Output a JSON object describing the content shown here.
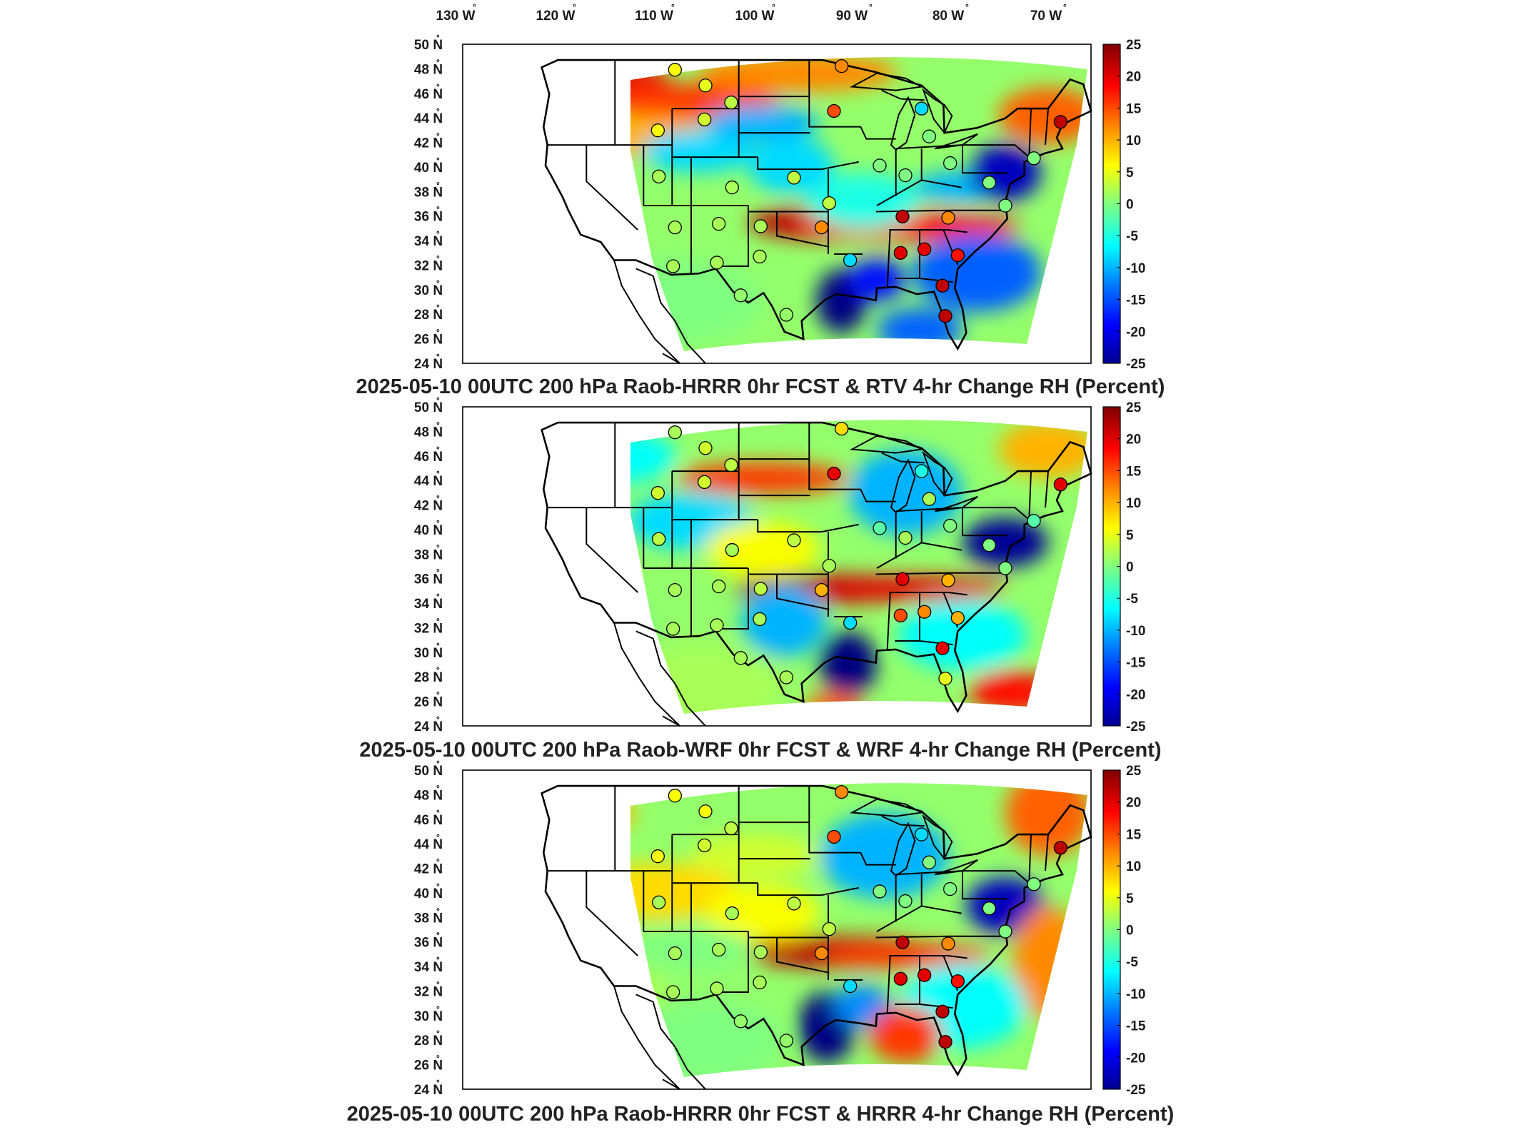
{
  "lon_labels": [
    "130",
    "120",
    "110",
    "100",
    "90",
    "80",
    "70"
  ],
  "lon_suffix": "W",
  "lat_labels": [
    "50",
    "48",
    "46",
    "44",
    "42",
    "40",
    "38",
    "36",
    "34",
    "32",
    "30",
    "28",
    "26",
    "24"
  ],
  "lat_suffix": "N",
  "colorbar": {
    "ticks": [
      "25",
      "20",
      "15",
      "10",
      "5",
      "0",
      "-5",
      "-10",
      "-15",
      "-20",
      "-25"
    ],
    "range": [
      -25,
      25
    ],
    "colormap": "jet",
    "colors": [
      "#00008f",
      "#0000ff",
      "#0080ff",
      "#00ffff",
      "#80ff80",
      "#ffff00",
      "#ff8000",
      "#ff0000",
      "#800000"
    ]
  },
  "panels": [
    {
      "title": "2025-05-10 00UTC 200 hPa Raob-HRRR 0hr FCST & RTV 4-hr Change RH (Percent)",
      "stations": [
        {
          "lon": -110.7,
          "lat": 48.2,
          "value": 6
        },
        {
          "lon": -107.5,
          "lat": 46.9,
          "value": 5
        },
        {
          "lon": -104.8,
          "lat": 45.5,
          "value": 3
        },
        {
          "lon": -93.2,
          "lat": 48.5,
          "value": 12
        },
        {
          "lon": -94.0,
          "lat": 44.8,
          "value": 15
        },
        {
          "lon": -112.5,
          "lat": 43.2,
          "value": 6
        },
        {
          "lon": -107.6,
          "lat": 44.1,
          "value": 4
        },
        {
          "lon": -84.8,
          "lat": 45.0,
          "value": -8
        },
        {
          "lon": -84.0,
          "lat": 42.7,
          "value": 0
        },
        {
          "lon": -89.2,
          "lat": 40.3,
          "value": 0
        },
        {
          "lon": -81.8,
          "lat": 40.5,
          "value": 0
        },
        {
          "lon": -86.5,
          "lat": 39.5,
          "value": 0
        },
        {
          "lon": -112.4,
          "lat": 39.4,
          "value": 2
        },
        {
          "lon": -104.7,
          "lat": 38.5,
          "value": 2
        },
        {
          "lon": -98.2,
          "lat": 39.3,
          "value": 3
        },
        {
          "lon": -94.5,
          "lat": 37.2,
          "value": 3
        },
        {
          "lon": -86.8,
          "lat": 36.1,
          "value": 22
        },
        {
          "lon": -82.0,
          "lat": 36.0,
          "value": 12
        },
        {
          "lon": -77.7,
          "lat": 38.9,
          "value": 0
        },
        {
          "lon": -95.3,
          "lat": 35.2,
          "value": 12
        },
        {
          "lon": -110.7,
          "lat": 35.2,
          "value": 2
        },
        {
          "lon": -106.1,
          "lat": 35.5,
          "value": 2
        },
        {
          "lon": -101.7,
          "lat": 35.3,
          "value": 2
        },
        {
          "lon": -92.3,
          "lat": 32.5,
          "value": -8
        },
        {
          "lon": -87.0,
          "lat": 33.1,
          "value": 20
        },
        {
          "lon": -84.5,
          "lat": 33.4,
          "value": 20
        },
        {
          "lon": -81.0,
          "lat": 32.9,
          "value": 18
        },
        {
          "lon": -106.3,
          "lat": 32.3,
          "value": 2
        },
        {
          "lon": -101.8,
          "lat": 32.8,
          "value": 2
        },
        {
          "lon": -110.9,
          "lat": 32.0,
          "value": 2
        },
        {
          "lon": -103.8,
          "lat": 29.6,
          "value": 1
        },
        {
          "lon": -99.0,
          "lat": 28.0,
          "value": 1
        },
        {
          "lon": -82.6,
          "lat": 30.4,
          "value": 22
        },
        {
          "lon": -82.3,
          "lat": 27.9,
          "value": 22
        },
        {
          "lon": -70.2,
          "lat": 43.9,
          "value": 22
        },
        {
          "lon": -73.0,
          "lat": 40.9,
          "value": 0
        },
        {
          "lon": -76.0,
          "lat": 37.0,
          "value": 0
        }
      ]
    },
    {
      "title": "2025-05-10 00UTC 200 hPa Raob-WRF 0hr FCST & WRF 4-hr Change RH (Percent)",
      "stations": [
        {
          "lon": -110.7,
          "lat": 48.2,
          "value": 2
        },
        {
          "lon": -107.5,
          "lat": 46.9,
          "value": 4
        },
        {
          "lon": -104.8,
          "lat": 45.5,
          "value": 3
        },
        {
          "lon": -93.2,
          "lat": 48.5,
          "value": 8
        },
        {
          "lon": -94.0,
          "lat": 44.8,
          "value": 20
        },
        {
          "lon": -112.5,
          "lat": 43.2,
          "value": 4
        },
        {
          "lon": -107.6,
          "lat": 44.1,
          "value": 4
        },
        {
          "lon": -84.8,
          "lat": 45.0,
          "value": -5
        },
        {
          "lon": -84.0,
          "lat": 42.7,
          "value": 2
        },
        {
          "lon": -89.2,
          "lat": 40.3,
          "value": -2
        },
        {
          "lon": -81.8,
          "lat": 40.5,
          "value": 0
        },
        {
          "lon": -86.5,
          "lat": 39.5,
          "value": 2
        },
        {
          "lon": -112.4,
          "lat": 39.4,
          "value": 3
        },
        {
          "lon": -104.7,
          "lat": 38.5,
          "value": 2
        },
        {
          "lon": -98.2,
          "lat": 39.3,
          "value": 3
        },
        {
          "lon": -94.5,
          "lat": 37.2,
          "value": 2
        },
        {
          "lon": -86.8,
          "lat": 36.1,
          "value": 20
        },
        {
          "lon": -82.0,
          "lat": 36.0,
          "value": 10
        },
        {
          "lon": -77.7,
          "lat": 38.9,
          "value": 0
        },
        {
          "lon": -95.3,
          "lat": 35.2,
          "value": 10
        },
        {
          "lon": -110.7,
          "lat": 35.2,
          "value": 2
        },
        {
          "lon": -106.1,
          "lat": 35.5,
          "value": 2
        },
        {
          "lon": -101.7,
          "lat": 35.3,
          "value": 3
        },
        {
          "lon": -92.3,
          "lat": 32.5,
          "value": -8
        },
        {
          "lon": -87.0,
          "lat": 33.1,
          "value": 15
        },
        {
          "lon": -84.5,
          "lat": 33.4,
          "value": 12
        },
        {
          "lon": -81.0,
          "lat": 32.9,
          "value": 10
        },
        {
          "lon": -106.3,
          "lat": 32.3,
          "value": 2
        },
        {
          "lon": -101.8,
          "lat": 32.8,
          "value": 2
        },
        {
          "lon": -110.9,
          "lat": 32.0,
          "value": 2
        },
        {
          "lon": -103.8,
          "lat": 29.6,
          "value": 2
        },
        {
          "lon": -99.0,
          "lat": 28.0,
          "value": 2
        },
        {
          "lon": -82.6,
          "lat": 30.4,
          "value": 20
        },
        {
          "lon": -82.3,
          "lat": 27.9,
          "value": 5
        },
        {
          "lon": -70.2,
          "lat": 43.9,
          "value": 20
        },
        {
          "lon": -73.0,
          "lat": 40.9,
          "value": -2
        },
        {
          "lon": -76.0,
          "lat": 37.0,
          "value": 0
        }
      ]
    },
    {
      "title": "2025-05-10 00UTC 200 hPa Raob-HRRR 0hr FCST & HRRR 4-hr Change RH (Percent)",
      "stations": [
        {
          "lon": -110.7,
          "lat": 48.2,
          "value": 6
        },
        {
          "lon": -107.5,
          "lat": 46.9,
          "value": 6
        },
        {
          "lon": -104.8,
          "lat": 45.5,
          "value": 3
        },
        {
          "lon": -93.2,
          "lat": 48.5,
          "value": 12
        },
        {
          "lon": -94.0,
          "lat": 44.8,
          "value": 15
        },
        {
          "lon": -112.5,
          "lat": 43.2,
          "value": 6
        },
        {
          "lon": -107.6,
          "lat": 44.1,
          "value": 4
        },
        {
          "lon": -84.8,
          "lat": 45.0,
          "value": -8
        },
        {
          "lon": -84.0,
          "lat": 42.7,
          "value": 0
        },
        {
          "lon": -89.2,
          "lat": 40.3,
          "value": 0
        },
        {
          "lon": -81.8,
          "lat": 40.5,
          "value": 0
        },
        {
          "lon": -86.5,
          "lat": 39.5,
          "value": 0
        },
        {
          "lon": -112.4,
          "lat": 39.4,
          "value": 2
        },
        {
          "lon": -104.7,
          "lat": 38.5,
          "value": 2
        },
        {
          "lon": -98.2,
          "lat": 39.3,
          "value": 3
        },
        {
          "lon": -94.5,
          "lat": 37.2,
          "value": 3
        },
        {
          "lon": -86.8,
          "lat": 36.1,
          "value": 22
        },
        {
          "lon": -82.0,
          "lat": 36.0,
          "value": 12
        },
        {
          "lon": -77.7,
          "lat": 38.9,
          "value": 0
        },
        {
          "lon": -95.3,
          "lat": 35.2,
          "value": 12
        },
        {
          "lon": -110.7,
          "lat": 35.2,
          "value": 2
        },
        {
          "lon": -106.1,
          "lat": 35.5,
          "value": 2
        },
        {
          "lon": -101.7,
          "lat": 35.3,
          "value": 2
        },
        {
          "lon": -92.3,
          "lat": 32.5,
          "value": -8
        },
        {
          "lon": -87.0,
          "lat": 33.1,
          "value": 20
        },
        {
          "lon": -84.5,
          "lat": 33.4,
          "value": 20
        },
        {
          "lon": -81.0,
          "lat": 32.9,
          "value": 18
        },
        {
          "lon": -106.3,
          "lat": 32.3,
          "value": 2
        },
        {
          "lon": -101.8,
          "lat": 32.8,
          "value": 2
        },
        {
          "lon": -110.9,
          "lat": 32.0,
          "value": 2
        },
        {
          "lon": -103.8,
          "lat": 29.6,
          "value": 1
        },
        {
          "lon": -99.0,
          "lat": 28.0,
          "value": 1
        },
        {
          "lon": -82.6,
          "lat": 30.4,
          "value": 22
        },
        {
          "lon": -82.3,
          "lat": 27.9,
          "value": 22
        },
        {
          "lon": -70.2,
          "lat": 43.9,
          "value": 22
        },
        {
          "lon": -73.0,
          "lat": 40.9,
          "value": 0
        },
        {
          "lon": -76.0,
          "lat": 37.0,
          "value": 0
        }
      ]
    }
  ]
}
